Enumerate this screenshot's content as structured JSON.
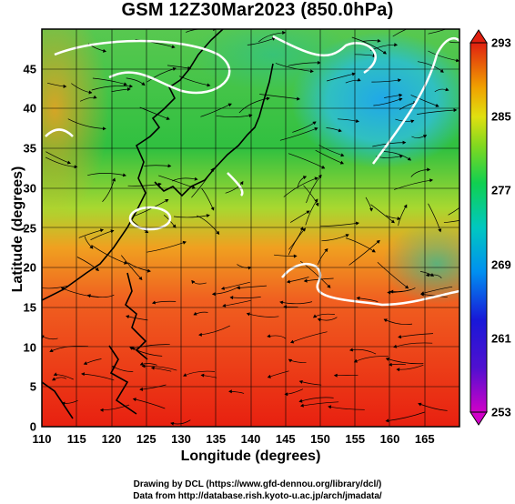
{
  "header": {
    "title": "GSM 12Z30Mar2023 (850.0hPa)"
  },
  "axes": {
    "xlabel": "Longitude (degrees)",
    "ylabel": "Latitude  (degrees)",
    "x_ticks": [
      "110",
      "115",
      "120",
      "125",
      "130",
      "135",
      "140",
      "145",
      "150",
      "155",
      "160",
      "165"
    ],
    "y_ticks": [
      "0",
      "5",
      "10",
      "15",
      "20",
      "25",
      "30",
      "35",
      "40",
      "45"
    ],
    "xlim": [
      110,
      170
    ],
    "ylim": [
      0,
      50
    ]
  },
  "colorbar": {
    "labels": [
      "293",
      "285",
      "277",
      "269",
      "261",
      "253"
    ],
    "range": [
      253,
      293
    ],
    "colors": [
      "#d000c8",
      "#1818d8",
      "#00a0f0",
      "#10d070",
      "#20c020",
      "#c8e010",
      "#f0c000",
      "#f06010",
      "#e02010"
    ]
  },
  "footer": {
    "credit_line1": "Drawing by DCL (https://www.gfd-dennou.org/library/dcl/)",
    "credit_line2": "Data from http://database.rish.kyoto-u.ac.jp/arch/jmadata/"
  }
}
